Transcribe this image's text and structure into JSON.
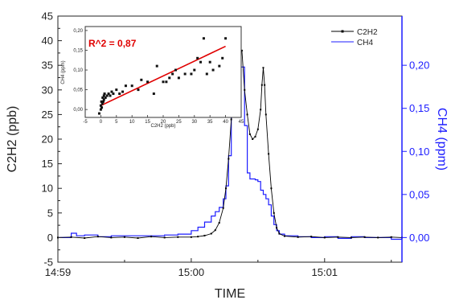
{
  "chart_data": [
    {
      "type": "line",
      "xlabel": "TIME",
      "ylabel": "C2H2 (ppb)",
      "y2label": "CH4 (ppm)",
      "x_ticks": [
        "14:59",
        "15:00",
        "15:01"
      ],
      "x_tick_minutes": [
        0,
        1,
        2
      ],
      "xlim_minutes": [
        0,
        2.58
      ],
      "ylim": [
        -5,
        45
      ],
      "y_ticks": [
        -5,
        0,
        5,
        10,
        15,
        20,
        25,
        30,
        35,
        40,
        45
      ],
      "y2lim": [
        -0.0286,
        0.2571
      ],
      "y2_ticks": [
        "0,00",
        "0,05",
        "0,10",
        "0,15",
        "0,20"
      ],
      "y2_tick_values": [
        0,
        0.05,
        0.1,
        0.15,
        0.2
      ],
      "legend_position": "top-right",
      "series": [
        {
          "name": "C2H2",
          "axis": "left",
          "color": "#000000",
          "style": "line-with-small-square-markers",
          "points": [
            [
              0.0,
              0.0
            ],
            [
              0.1,
              0.1
            ],
            [
              0.2,
              -0.1
            ],
            [
              0.3,
              0.2
            ],
            [
              0.4,
              0.0
            ],
            [
              0.5,
              0.1
            ],
            [
              0.6,
              -0.1
            ],
            [
              0.7,
              0.2
            ],
            [
              0.8,
              0.0
            ],
            [
              0.9,
              0.1
            ],
            [
              1.0,
              0.1
            ],
            [
              1.05,
              0.2
            ],
            [
              1.1,
              0.4
            ],
            [
              1.15,
              0.8
            ],
            [
              1.18,
              1.5
            ],
            [
              1.21,
              3.0
            ],
            [
              1.24,
              6.0
            ],
            [
              1.26,
              10.0
            ],
            [
              1.28,
              16.0
            ],
            [
              1.3,
              24.0
            ],
            [
              1.32,
              30.0
            ],
            [
              1.34,
              38.0
            ],
            [
              1.36,
              38.5
            ],
            [
              1.38,
              38.0
            ],
            [
              1.4,
              30.0
            ],
            [
              1.42,
              25.0
            ],
            [
              1.44,
              21.0
            ],
            [
              1.46,
              20.0
            ],
            [
              1.48,
              20.5
            ],
            [
              1.5,
              22.0
            ],
            [
              1.52,
              26.0
            ],
            [
              1.53,
              31.0
            ],
            [
              1.54,
              34.5
            ],
            [
              1.55,
              31.0
            ],
            [
              1.56,
              25.0
            ],
            [
              1.58,
              17.0
            ],
            [
              1.6,
              10.0
            ],
            [
              1.62,
              5.0
            ],
            [
              1.64,
              2.0
            ],
            [
              1.66,
              0.8
            ],
            [
              1.7,
              0.3
            ],
            [
              1.8,
              0.1
            ],
            [
              1.9,
              0.2
            ],
            [
              2.0,
              0.0
            ],
            [
              2.1,
              0.1
            ],
            [
              2.2,
              0.0
            ],
            [
              2.3,
              0.1
            ],
            [
              2.4,
              0.0
            ],
            [
              2.5,
              0.1
            ],
            [
              2.58,
              0.0
            ]
          ]
        },
        {
          "name": "CH4",
          "axis": "right",
          "color": "#1c1cff",
          "style": "step-line",
          "points": [
            [
              0.0,
              0.0
            ],
            [
              0.08,
              0.0
            ],
            [
              0.1,
              0.005
            ],
            [
              0.14,
              0.002
            ],
            [
              0.2,
              0.003
            ],
            [
              0.3,
              0.001
            ],
            [
              0.4,
              0.002
            ],
            [
              0.5,
              0.002
            ],
            [
              0.6,
              0.002
            ],
            [
              0.7,
              0.002
            ],
            [
              0.8,
              0.003
            ],
            [
              0.9,
              0.004
            ],
            [
              1.0,
              0.008
            ],
            [
              1.05,
              0.012
            ],
            [
              1.1,
              0.018
            ],
            [
              1.15,
              0.025
            ],
            [
              1.18,
              0.03
            ],
            [
              1.21,
              0.035
            ],
            [
              1.24,
              0.045
            ],
            [
              1.26,
              0.06
            ],
            [
              1.28,
              0.095
            ],
            [
              1.3,
              0.15
            ],
            [
              1.32,
              0.19
            ],
            [
              1.34,
              0.198
            ],
            [
              1.38,
              0.198
            ],
            [
              1.4,
              0.13
            ],
            [
              1.42,
              0.075
            ],
            [
              1.44,
              0.068
            ],
            [
              1.46,
              0.068
            ],
            [
              1.48,
              0.067
            ],
            [
              1.5,
              0.065
            ],
            [
              1.52,
              0.055
            ],
            [
              1.54,
              0.05
            ],
            [
              1.56,
              0.045
            ],
            [
              1.58,
              0.038
            ],
            [
              1.6,
              0.025
            ],
            [
              1.62,
              0.015
            ],
            [
              1.64,
              0.008
            ],
            [
              1.66,
              0.004
            ],
            [
              1.7,
              0.002
            ],
            [
              1.8,
              0.001
            ],
            [
              1.9,
              0.0
            ],
            [
              2.0,
              0.001
            ],
            [
              2.1,
              -0.001
            ],
            [
              2.2,
              0.001
            ],
            [
              2.3,
              0.0
            ],
            [
              2.4,
              0.0
            ],
            [
              2.5,
              -0.002
            ],
            [
              2.58,
              -0.002
            ]
          ]
        }
      ]
    },
    {
      "type": "scatter",
      "xlabel": "C2H2 (ppb)",
      "ylabel": "CH4 (ppm)",
      "xlim": [
        -5,
        45
      ],
      "x_ticks": [
        -5,
        0,
        5,
        10,
        15,
        20,
        25,
        30,
        35,
        40,
        45
      ],
      "ylim": [
        -0.02,
        0.21
      ],
      "y_ticks": [
        "0,00",
        "0,05",
        "0,10",
        "0,15",
        "0,20"
      ],
      "y_tick_values": [
        0,
        0.05,
        0.1,
        0.15,
        0.2
      ],
      "annotation": "R^2 = 0,87",
      "annotation_color": "#e00000",
      "fit_line": {
        "color": "#e00000",
        "x": [
          0,
          40
        ],
        "y": [
          0.01,
          0.16
        ]
      },
      "points": [
        [
          -0.5,
          -0.01
        ],
        [
          0,
          0.0
        ],
        [
          0,
          0.01
        ],
        [
          0.2,
          0.02
        ],
        [
          0.3,
          0.005
        ],
        [
          0.5,
          0.015
        ],
        [
          0.6,
          0.03
        ],
        [
          0.8,
          0.02
        ],
        [
          1,
          0.025
        ],
        [
          1,
          0.035
        ],
        [
          1.2,
          0.04
        ],
        [
          1.5,
          0.03
        ],
        [
          2,
          0.035
        ],
        [
          2.5,
          0.04
        ],
        [
          3,
          0.035
        ],
        [
          3.5,
          0.045
        ],
        [
          4,
          0.04
        ],
        [
          5,
          0.05
        ],
        [
          6,
          0.04
        ],
        [
          7,
          0.045
        ],
        [
          8,
          0.06
        ],
        [
          10,
          0.06
        ],
        [
          12,
          0.05
        ],
        [
          13,
          0.075
        ],
        [
          15,
          0.07
        ],
        [
          17,
          0.04
        ],
        [
          18,
          0.11
        ],
        [
          20,
          0.07
        ],
        [
          21,
          0.07
        ],
        [
          22,
          0.08
        ],
        [
          23,
          0.09
        ],
        [
          24,
          0.1
        ],
        [
          25,
          0.08
        ],
        [
          27,
          0.09
        ],
        [
          29,
          0.09
        ],
        [
          30,
          0.1
        ],
        [
          31,
          0.13
        ],
        [
          32,
          0.12
        ],
        [
          33,
          0.18
        ],
        [
          34,
          0.09
        ],
        [
          35,
          0.12
        ],
        [
          36,
          0.1
        ],
        [
          38,
          0.11
        ],
        [
          39,
          0.13
        ],
        [
          40,
          0.18
        ]
      ]
    }
  ]
}
